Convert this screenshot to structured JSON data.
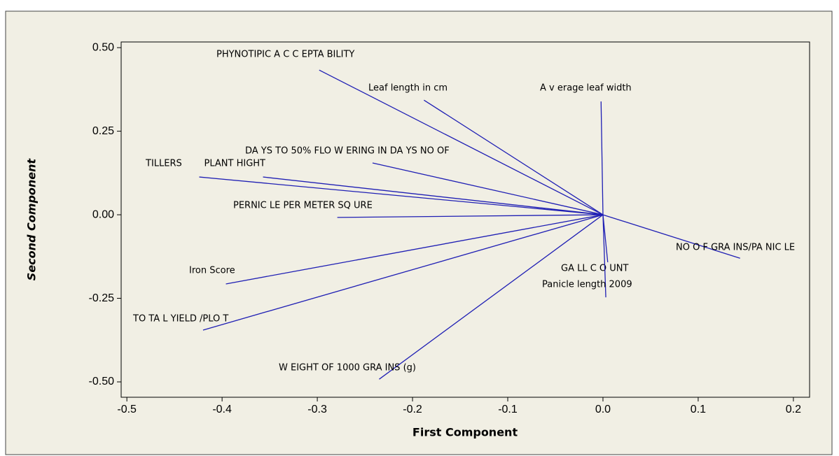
{
  "chart_data": {
    "type": "vector",
    "xlabel": "First Component",
    "ylabel": "Second Component",
    "labels": [
      "PHYNOTIPIC A C C EPTA BILITY",
      "Leaf length in cm",
      "A v erage leaf width",
      "DA YS TO 50% FLO W ERING IN DA YS NO OF",
      "TILLERS",
      "PLANT HIGHT",
      "PERNIC LE PER METER SQ URE",
      "NO O F GRA INS/PA NIC LE",
      "GA LL C O UNT",
      "Panicle length 2009",
      "Iron Score",
      "TO TA L YIELD /PLO T",
      "W EIGHT OF 1000 GRA INS (g)"
    ],
    "x": [
      -0.298,
      -0.188,
      -0.002,
      -0.242,
      -0.424,
      -0.357,
      -0.279,
      0.144,
      0.005,
      0.003,
      -0.396,
      -0.42,
      -0.235
    ],
    "y": [
      0.433,
      0.343,
      0.339,
      0.155,
      0.113,
      0.113,
      -0.008,
      -0.13,
      -0.142,
      -0.247,
      -0.207,
      -0.345,
      -0.492
    ],
    "color": "#1f1fb4",
    "xlim": [
      -0.506,
      0.217
    ],
    "ylim": [
      -0.546,
      0.517
    ],
    "xticks": [
      -0.5,
      -0.4,
      -0.3,
      -0.2,
      -0.1,
      {
        "value": 0,
        "label": "0.0"
      },
      0.1,
      0.2
    ],
    "yticks": [
      {
        "value": 0.5,
        "label": "0.50"
      },
      {
        "value": 0.25,
        "label": "0.25"
      },
      {
        "value": 0,
        "label": "0.00"
      },
      {
        "value": -0.25,
        "label": "-0.25"
      },
      {
        "value": -0.5,
        "label": "-0.50"
      }
    ]
  }
}
